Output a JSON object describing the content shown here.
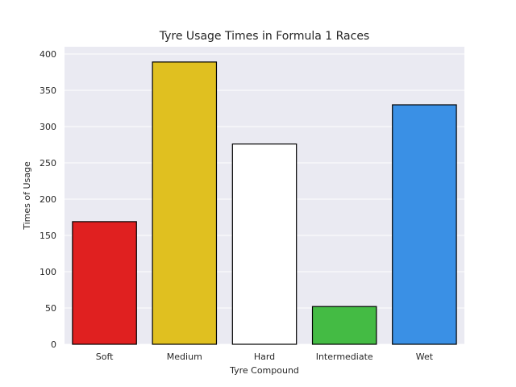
{
  "chart_data": {
    "type": "bar",
    "title": "Tyre Usage Times in Formula 1 Races",
    "xlabel": "Tyre Compound",
    "ylabel": "Times of Usage",
    "categories": [
      "Soft",
      "Medium",
      "Hard",
      "Intermediate",
      "Wet"
    ],
    "values": [
      169,
      389,
      276,
      52,
      330
    ],
    "colors": [
      "#e02020",
      "#e0c020",
      "#ffffff",
      "#44bb44",
      "#3a90e5"
    ],
    "ylim": [
      0,
      410
    ],
    "yticks": [
      0,
      50,
      100,
      150,
      200,
      250,
      300,
      350,
      400
    ],
    "grid": true,
    "background": "#eaeaf2",
    "grid_color": "#ffffff",
    "bar_edge_color": "#000000"
  }
}
